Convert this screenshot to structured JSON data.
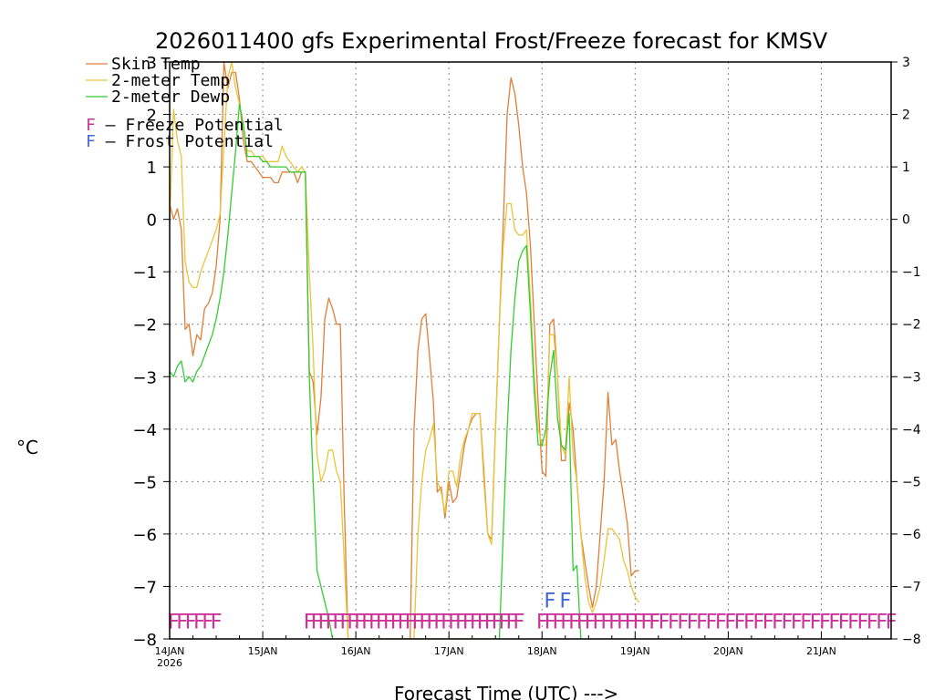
{
  "chart_data": {
    "type": "line",
    "title": "2026011400 gfs Experimental Frost/Freeze forecast for KMSV",
    "xlabel": "Forecast Time (UTC) --->",
    "ylabel": "°C",
    "ylim": [
      -8,
      3
    ],
    "xlim": [
      0,
      186
    ],
    "yticks": [
      3,
      2,
      1,
      0,
      -1,
      -2,
      -3,
      -4,
      -5,
      -6,
      -7,
      -8
    ],
    "xticks": [
      {
        "h": 0,
        "label": "14JAN",
        "sub": "2026"
      },
      {
        "h": 24,
        "label": "15JAN",
        "sub": ""
      },
      {
        "h": 48,
        "label": "16JAN",
        "sub": ""
      },
      {
        "h": 72,
        "label": "17JAN",
        "sub": ""
      },
      {
        "h": 96,
        "label": "18JAN",
        "sub": ""
      },
      {
        "h": 120,
        "label": "19JAN",
        "sub": ""
      },
      {
        "h": 144,
        "label": "20JAN",
        "sub": ""
      },
      {
        "h": 168,
        "label": "21JAN",
        "sub": ""
      }
    ],
    "grid": true,
    "legend": [
      {
        "name": "Skin Temp",
        "color": "#dd7f3a"
      },
      {
        "name": "2-meter Temp",
        "color": "#e8c53a"
      },
      {
        "name": "2-meter Dewp",
        "color": "#33cc33"
      }
    ],
    "legend_potential": [
      {
        "mark": "F",
        "text": " – Freeze Potential",
        "color": "#cc3399"
      },
      {
        "mark": "F",
        "text": " – Frost Potential",
        "color": "#4466dd"
      }
    ],
    "series": [
      {
        "name": "Skin Temp",
        "color": "#dd7f3a",
        "points": [
          [
            0,
            0.3
          ],
          [
            1,
            0.0
          ],
          [
            2,
            0.2
          ],
          [
            3,
            -0.2
          ],
          [
            4,
            -2.1
          ],
          [
            5,
            -2.0
          ],
          [
            6,
            -2.6
          ],
          [
            7,
            -2.2
          ],
          [
            8,
            -2.3
          ],
          [
            9,
            -1.7
          ],
          [
            10,
            -1.6
          ],
          [
            11,
            -1.4
          ],
          [
            12,
            -0.9
          ],
          [
            13,
            0.0
          ],
          [
            14,
            3.0
          ],
          [
            15,
            2.5
          ],
          [
            16,
            2.8
          ],
          [
            17,
            2.8
          ],
          [
            18,
            2.3
          ],
          [
            19,
            1.5
          ],
          [
            20,
            1.1
          ],
          [
            21,
            1.1
          ],
          [
            22,
            1.0
          ],
          [
            23,
            0.9
          ],
          [
            24,
            0.8
          ],
          [
            25,
            0.8
          ],
          [
            26,
            0.8
          ],
          [
            27,
            0.7
          ],
          [
            28,
            0.7
          ],
          [
            29,
            0.9
          ],
          [
            30,
            0.9
          ],
          [
            31,
            0.9
          ],
          [
            32,
            0.9
          ],
          [
            33,
            0.7
          ],
          [
            34,
            0.9
          ],
          [
            35,
            0.9
          ],
          [
            36,
            -2.9
          ],
          [
            37,
            -3.1
          ],
          [
            38,
            -4.1
          ],
          [
            39,
            -3.4
          ],
          [
            40,
            -1.9
          ],
          [
            41,
            -1.5
          ],
          [
            42,
            -1.7
          ],
          [
            43,
            -2.0
          ],
          [
            44,
            -2.0
          ],
          [
            45,
            -5.4
          ],
          [
            46,
            -8.0
          ],
          [
            62,
            -8.0
          ],
          [
            63,
            -4.0
          ],
          [
            64,
            -2.5
          ],
          [
            65,
            -1.9
          ],
          [
            66,
            -1.8
          ],
          [
            67,
            -2.6
          ],
          [
            68,
            -3.5
          ],
          [
            69,
            -5.2
          ],
          [
            70,
            -5.1
          ],
          [
            71,
            -5.7
          ],
          [
            72,
            -5.0
          ],
          [
            73,
            -5.4
          ],
          [
            74,
            -5.3
          ],
          [
            75,
            -4.8
          ],
          [
            76,
            -4.3
          ],
          [
            77,
            -4.0
          ],
          [
            78,
            -3.8
          ],
          [
            79,
            -3.7
          ],
          [
            80,
            -3.7
          ],
          [
            81,
            -4.8
          ],
          [
            82,
            -6.0
          ],
          [
            83,
            -6.1
          ],
          [
            84,
            -4.0
          ],
          [
            85,
            -2.0
          ],
          [
            86,
            -0.1
          ],
          [
            87,
            2.0
          ],
          [
            88,
            2.7
          ],
          [
            89,
            2.4
          ],
          [
            90,
            1.8
          ],
          [
            91,
            1.0
          ],
          [
            92,
            0.5
          ],
          [
            93,
            -0.5
          ],
          [
            94,
            -2.0
          ],
          [
            95,
            -3.5
          ],
          [
            96,
            -4.8
          ],
          [
            97,
            -4.9
          ],
          [
            98,
            -2.0
          ],
          [
            99,
            -1.9
          ],
          [
            100,
            -3.0
          ],
          [
            101,
            -4.6
          ],
          [
            102,
            -4.6
          ],
          [
            103,
            -3.5
          ],
          [
            104,
            -4.0
          ],
          [
            105,
            -5.0
          ],
          [
            106,
            -6.0
          ],
          [
            107,
            -6.5
          ],
          [
            108,
            -7.0
          ],
          [
            109,
            -7.4
          ],
          [
            110,
            -7.0
          ],
          [
            111,
            -6.0
          ],
          [
            112,
            -5.0
          ],
          [
            113,
            -3.3
          ],
          [
            114,
            -4.3
          ],
          [
            115,
            -4.2
          ],
          [
            116,
            -4.8
          ],
          [
            117,
            -5.3
          ],
          [
            118,
            -5.8
          ],
          [
            119,
            -6.8
          ],
          [
            120,
            -6.7
          ],
          [
            121,
            -6.7
          ]
        ]
      },
      {
        "name": "2-meter Temp",
        "color": "#e8c53a",
        "points": [
          [
            0,
            -0.1
          ],
          [
            1,
            2.1
          ],
          [
            2,
            1.5
          ],
          [
            3,
            1.2
          ],
          [
            4,
            -0.8
          ],
          [
            5,
            -1.2
          ],
          [
            6,
            -1.3
          ],
          [
            7,
            -1.3
          ],
          [
            8,
            -1.0
          ],
          [
            9,
            -0.8
          ],
          [
            10,
            -0.6
          ],
          [
            11,
            -0.4
          ],
          [
            12,
            -0.2
          ],
          [
            13,
            0.1
          ],
          [
            14,
            1.4
          ],
          [
            15,
            2.7
          ],
          [
            16,
            3.0
          ],
          [
            17,
            2.5
          ],
          [
            18,
            2.2
          ],
          [
            19,
            1.8
          ],
          [
            20,
            1.3
          ],
          [
            21,
            1.3
          ],
          [
            22,
            1.2
          ],
          [
            23,
            1.2
          ],
          [
            24,
            1.2
          ],
          [
            25,
            1.1
          ],
          [
            26,
            1.1
          ],
          [
            27,
            1.1
          ],
          [
            28,
            1.1
          ],
          [
            29,
            1.4
          ],
          [
            30,
            1.2
          ],
          [
            31,
            1.1
          ],
          [
            32,
            1.0
          ],
          [
            33,
            0.9
          ],
          [
            34,
            1.0
          ],
          [
            35,
            0.9
          ],
          [
            36,
            -1.0
          ],
          [
            37,
            -2.5
          ],
          [
            38,
            -4.5
          ],
          [
            39,
            -5.0
          ],
          [
            40,
            -4.8
          ],
          [
            41,
            -4.4
          ],
          [
            42,
            -4.4
          ],
          [
            43,
            -4.8
          ],
          [
            44,
            -5.0
          ],
          [
            45,
            -6.5
          ],
          [
            46,
            -8.0
          ],
          [
            63,
            -8.0
          ],
          [
            64,
            -6.0
          ],
          [
            65,
            -5.0
          ],
          [
            66,
            -4.4
          ],
          [
            67,
            -4.2
          ],
          [
            68,
            -3.9
          ],
          [
            69,
            -5.0
          ],
          [
            70,
            -5.2
          ],
          [
            71,
            -5.6
          ],
          [
            72,
            -4.8
          ],
          [
            73,
            -4.8
          ],
          [
            74,
            -5.1
          ],
          [
            75,
            -4.5
          ],
          [
            76,
            -4.2
          ],
          [
            77,
            -4.0
          ],
          [
            78,
            -3.7
          ],
          [
            79,
            -3.7
          ],
          [
            80,
            -3.7
          ],
          [
            81,
            -5.0
          ],
          [
            82,
            -6.0
          ],
          [
            83,
            -6.2
          ],
          [
            84,
            -4.0
          ],
          [
            85,
            -2.0
          ],
          [
            86,
            -0.5
          ],
          [
            87,
            0.3
          ],
          [
            88,
            0.3
          ],
          [
            89,
            -0.2
          ],
          [
            90,
            -0.3
          ],
          [
            91,
            -0.3
          ],
          [
            92,
            -0.2
          ],
          [
            93,
            -1.5
          ],
          [
            94,
            -3.0
          ],
          [
            95,
            -4.0
          ],
          [
            96,
            -4.3
          ],
          [
            97,
            -4.3
          ],
          [
            98,
            -2.2
          ],
          [
            99,
            -2.2
          ],
          [
            100,
            -3.0
          ],
          [
            101,
            -4.3
          ],
          [
            102,
            -4.5
          ],
          [
            103,
            -3.0
          ],
          [
            104,
            -4.5
          ],
          [
            105,
            -5.0
          ],
          [
            106,
            -6.0
          ],
          [
            107,
            -6.8
          ],
          [
            108,
            -7.3
          ],
          [
            109,
            -7.5
          ],
          [
            110,
            -7.3
          ],
          [
            111,
            -7.0
          ],
          [
            112,
            -6.5
          ],
          [
            113,
            -5.9
          ],
          [
            114,
            -5.9
          ],
          [
            115,
            -6.0
          ],
          [
            116,
            -6.1
          ],
          [
            117,
            -6.5
          ],
          [
            118,
            -6.7
          ],
          [
            119,
            -7.0
          ],
          [
            120,
            -7.2
          ],
          [
            121,
            -7.3
          ]
        ]
      },
      {
        "name": "2-meter Dewp",
        "color": "#33cc33",
        "points": [
          [
            0,
            -2.9
          ],
          [
            1,
            -3.0
          ],
          [
            2,
            -2.8
          ],
          [
            3,
            -2.7
          ],
          [
            4,
            -3.1
          ],
          [
            5,
            -3.0
          ],
          [
            6,
            -3.1
          ],
          [
            7,
            -2.9
          ],
          [
            8,
            -2.8
          ],
          [
            9,
            -2.6
          ],
          [
            10,
            -2.4
          ],
          [
            11,
            -2.2
          ],
          [
            12,
            -1.9
          ],
          [
            13,
            -1.5
          ],
          [
            14,
            -1.0
          ],
          [
            15,
            -0.3
          ],
          [
            16,
            0.5
          ],
          [
            17,
            1.3
          ],
          [
            18,
            2.2
          ],
          [
            19,
            1.8
          ],
          [
            20,
            1.2
          ],
          [
            21,
            1.2
          ],
          [
            22,
            1.2
          ],
          [
            23,
            1.2
          ],
          [
            24,
            1.1
          ],
          [
            25,
            1.1
          ],
          [
            26,
            1.0
          ],
          [
            27,
            1.0
          ],
          [
            28,
            1.0
          ],
          [
            29,
            1.0
          ],
          [
            30,
            1.0
          ],
          [
            31,
            0.9
          ],
          [
            32,
            0.9
          ],
          [
            33,
            0.9
          ],
          [
            34,
            0.9
          ],
          [
            35,
            0.9
          ],
          [
            36,
            -3.0
          ],
          [
            37,
            -5.0
          ],
          [
            38,
            -6.7
          ],
          [
            39,
            -7.0
          ],
          [
            40,
            -7.3
          ],
          [
            41,
            -7.6
          ],
          [
            42,
            -8.0
          ],
          [
            85,
            -8.0
          ],
          [
            86,
            -6.0
          ],
          [
            87,
            -4.0
          ],
          [
            88,
            -2.5
          ],
          [
            89,
            -1.5
          ],
          [
            90,
            -0.8
          ],
          [
            91,
            -0.6
          ],
          [
            92,
            -0.5
          ],
          [
            93,
            -1.8
          ],
          [
            94,
            -3.3
          ],
          [
            95,
            -4.3
          ],
          [
            96,
            -4.3
          ],
          [
            97,
            -4.0
          ],
          [
            98,
            -3.0
          ],
          [
            99,
            -2.5
          ],
          [
            100,
            -3.8
          ],
          [
            101,
            -4.3
          ],
          [
            102,
            -4.4
          ],
          [
            103,
            -3.7
          ],
          [
            104,
            -6.7
          ],
          [
            105,
            -6.6
          ],
          [
            106,
            -8.0
          ]
        ]
      }
    ],
    "freeze_markers": [
      {
        "from": 1,
        "to": 12,
        "count": 6,
        "color": "#cc3399"
      },
      {
        "from": 36,
        "to": 90,
        "count": 30,
        "color": "#cc3399"
      },
      {
        "from": 96,
        "to": 125,
        "count": 15,
        "color": "#cc3399"
      },
      {
        "from": 125,
        "to": 186,
        "count": 26,
        "color": "#cc3399"
      }
    ],
    "frost_markers": [
      {
        "from": 98,
        "to": 102,
        "count": 2,
        "color": "#4466dd"
      }
    ]
  }
}
